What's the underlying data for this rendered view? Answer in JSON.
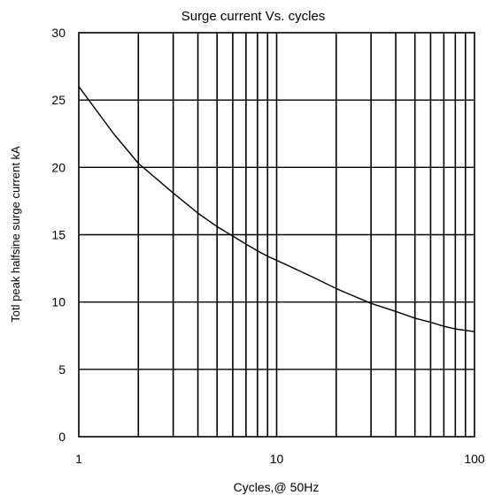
{
  "chart_data": {
    "type": "line",
    "title": "Surge current  Vs. cycles",
    "xlabel": "Cycles,@ 50Hz",
    "ylabel": "Totl peak halfsine surge current kA",
    "x_scale": "log",
    "xlim": [
      1,
      100
    ],
    "ylim": [
      0,
      30
    ],
    "x_tick_labels": [
      "1",
      "10",
      "100"
    ],
    "y_tick_labels": [
      "0",
      "5",
      "10",
      "15",
      "20",
      "25",
      "30"
    ],
    "grid": true,
    "series": [
      {
        "x": [
          1,
          1.5,
          2,
          3,
          4,
          5,
          6,
          7,
          8,
          9,
          10,
          15,
          20,
          30,
          40,
          50,
          60,
          70,
          80,
          90,
          100
        ],
        "y": [
          26,
          22.5,
          20.3,
          18.1,
          16.6,
          15.6,
          14.9,
          14.3,
          13.8,
          13.4,
          13.1,
          11.9,
          11.0,
          9.9,
          9.3,
          8.8,
          8.5,
          8.2,
          8.0,
          7.9,
          7.8
        ]
      }
    ]
  }
}
